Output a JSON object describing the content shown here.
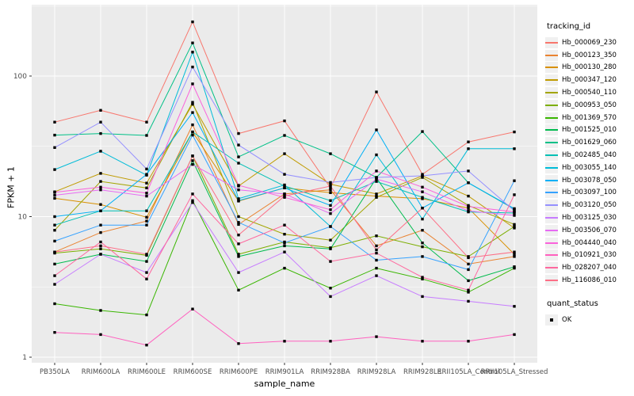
{
  "chart_data": {
    "type": "line",
    "title": "",
    "xlabel": "sample_name",
    "ylabel": "FPKM + 1",
    "y_scale": "log10",
    "ylim": [
      1,
      330
    ],
    "y_ticks": [
      1,
      10,
      100
    ],
    "y_tick_labels": [
      "1",
      "10",
      "100"
    ],
    "y_minor_ticks": [
      3.162,
      31.62,
      316.2
    ],
    "grid": "on",
    "panel_background": "#EBEBEB",
    "gridline_color": "#FFFFFF",
    "marker": "black-square",
    "legend_position": "right",
    "categories": [
      "PB350LA",
      "RRIM600LA",
      "RRIM600LE",
      "RRIM600SE",
      "RRIM600PE",
      "RRIM901LA",
      "RRIM928BA",
      "RRIM928LA",
      "RRIM928LE",
      "RRII105LA_Control",
      "RRII105LA_Stressed"
    ],
    "series": [
      {
        "name": "Hb_000069_230",
        "color": "#F8766D",
        "values": [
          47,
          57,
          47,
          243,
          39,
          48,
          16,
          77,
          20,
          34,
          40
        ]
      },
      {
        "name": "Hb_000123_350",
        "color": "#EA8331",
        "values": [
          5.6,
          7.7,
          9.3,
          45,
          8.8,
          14.5,
          15.5,
          6.2,
          8.0,
          4.6,
          5.2
        ]
      },
      {
        "name": "Hb_000130_280",
        "color": "#D89000",
        "values": [
          13.5,
          12.2,
          9.9,
          40,
          12.9,
          16,
          14.8,
          14,
          13.4,
          11.5,
          5.4
        ]
      },
      {
        "name": "Hb_000347_120",
        "color": "#C09B00",
        "values": [
          15,
          20.3,
          17.3,
          63,
          16.5,
          28,
          17,
          14.5,
          19.5,
          14,
          8.3
        ]
      },
      {
        "name": "Hb_000540_110",
        "color": "#A3A500",
        "values": [
          8,
          17.8,
          16,
          65,
          10,
          7.5,
          6.8,
          13.7,
          19,
          12,
          8.8
        ]
      },
      {
        "name": "Hb_000953_050",
        "color": "#7CAE00",
        "values": [
          5.5,
          5.9,
          5.3,
          27,
          5.4,
          6.6,
          6.0,
          7.3,
          6.1,
          5.2,
          8.5
        ]
      },
      {
        "name": "Hb_001369_570",
        "color": "#39B600",
        "values": [
          2.4,
          2.15,
          2.0,
          13,
          3.0,
          4.3,
          3.1,
          4.3,
          3.6,
          2.9,
          4.3
        ]
      },
      {
        "name": "Hb_001525_010",
        "color": "#00BB4E",
        "values": [
          4.6,
          5.4,
          4.8,
          25,
          5.2,
          6.2,
          5.9,
          18.8,
          6.5,
          3.5,
          4.4
        ]
      },
      {
        "name": "Hb_001629_060",
        "color": "#00C087",
        "values": [
          38,
          39,
          37.8,
          172,
          26.6,
          37.8,
          28,
          19,
          40.3,
          17.4,
          11.3
        ]
      },
      {
        "name": "Hb_002485_040",
        "color": "#00C0B5",
        "values": [
          8.7,
          11,
          11,
          40,
          24,
          16.5,
          13,
          17.8,
          13.7,
          10.8,
          10.6
        ]
      },
      {
        "name": "Hb_003055_140",
        "color": "#00BCD8",
        "values": [
          21.6,
          29.2,
          19.7,
          148,
          13.4,
          16.8,
          8.5,
          27.5,
          9.6,
          30.4,
          30.4
        ]
      },
      {
        "name": "Hb_003078_050",
        "color": "#00B0F6",
        "values": [
          10,
          11,
          20,
          55,
          13,
          16,
          12,
          41.4,
          11.5,
          17.4,
          11.4
        ]
      },
      {
        "name": "Hb_003097_100",
        "color": "#35A2FF",
        "values": [
          6.7,
          8.7,
          8.7,
          38,
          9.1,
          6.5,
          8.5,
          4.9,
          5.2,
          4.2,
          18
        ]
      },
      {
        "name": "Hb_003120_050",
        "color": "#9590FF",
        "values": [
          31,
          47,
          21.8,
          116,
          32.3,
          20,
          17.5,
          19,
          19.5,
          21.1,
          11
        ]
      },
      {
        "name": "Hb_003125_030",
        "color": "#C77CFF",
        "values": [
          3.3,
          5.4,
          4.0,
          12.6,
          4.0,
          5.6,
          2.7,
          3.8,
          2.7,
          2.5,
          2.3
        ]
      },
      {
        "name": "Hb_003506_070",
        "color": "#E76BF3",
        "values": [
          14.2,
          15.5,
          14.0,
          23.5,
          15.5,
          14.5,
          10.5,
          18.5,
          15.0,
          11.0,
          10.2
        ]
      },
      {
        "name": "Hb_004440_040",
        "color": "#FA62DB",
        "values": [
          14.9,
          16.2,
          14.7,
          88,
          16.7,
          13.7,
          11.2,
          21.1,
          16.2,
          11.8,
          10.8
        ]
      },
      {
        "name": "Hb_010921_030",
        "color": "#FF61BF",
        "values": [
          1.5,
          1.45,
          1.22,
          2.2,
          1.25,
          1.3,
          1.3,
          1.4,
          1.3,
          1.3,
          1.45
        ]
      },
      {
        "name": "Hb_028207_040",
        "color": "#FF689F",
        "values": [
          3.8,
          6.6,
          3.6,
          14.5,
          6.4,
          8.7,
          4.8,
          5.5,
          3.7,
          3.0,
          14.3
        ]
      },
      {
        "name": "Hb_116086_010",
        "color": "#FD6F87",
        "values": [
          5.6,
          6.2,
          5.4,
          27,
          7.4,
          14,
          16.5,
          5.8,
          11.5,
          5.1,
          5.6
        ]
      }
    ]
  },
  "legend": {
    "tracking_title": "tracking_id",
    "quant_title": "quant_status",
    "quant_items": [
      {
        "label": "OK"
      }
    ]
  },
  "axis": {
    "tick_color": "#333333",
    "tick_label_color": "#4D4D4D"
  }
}
